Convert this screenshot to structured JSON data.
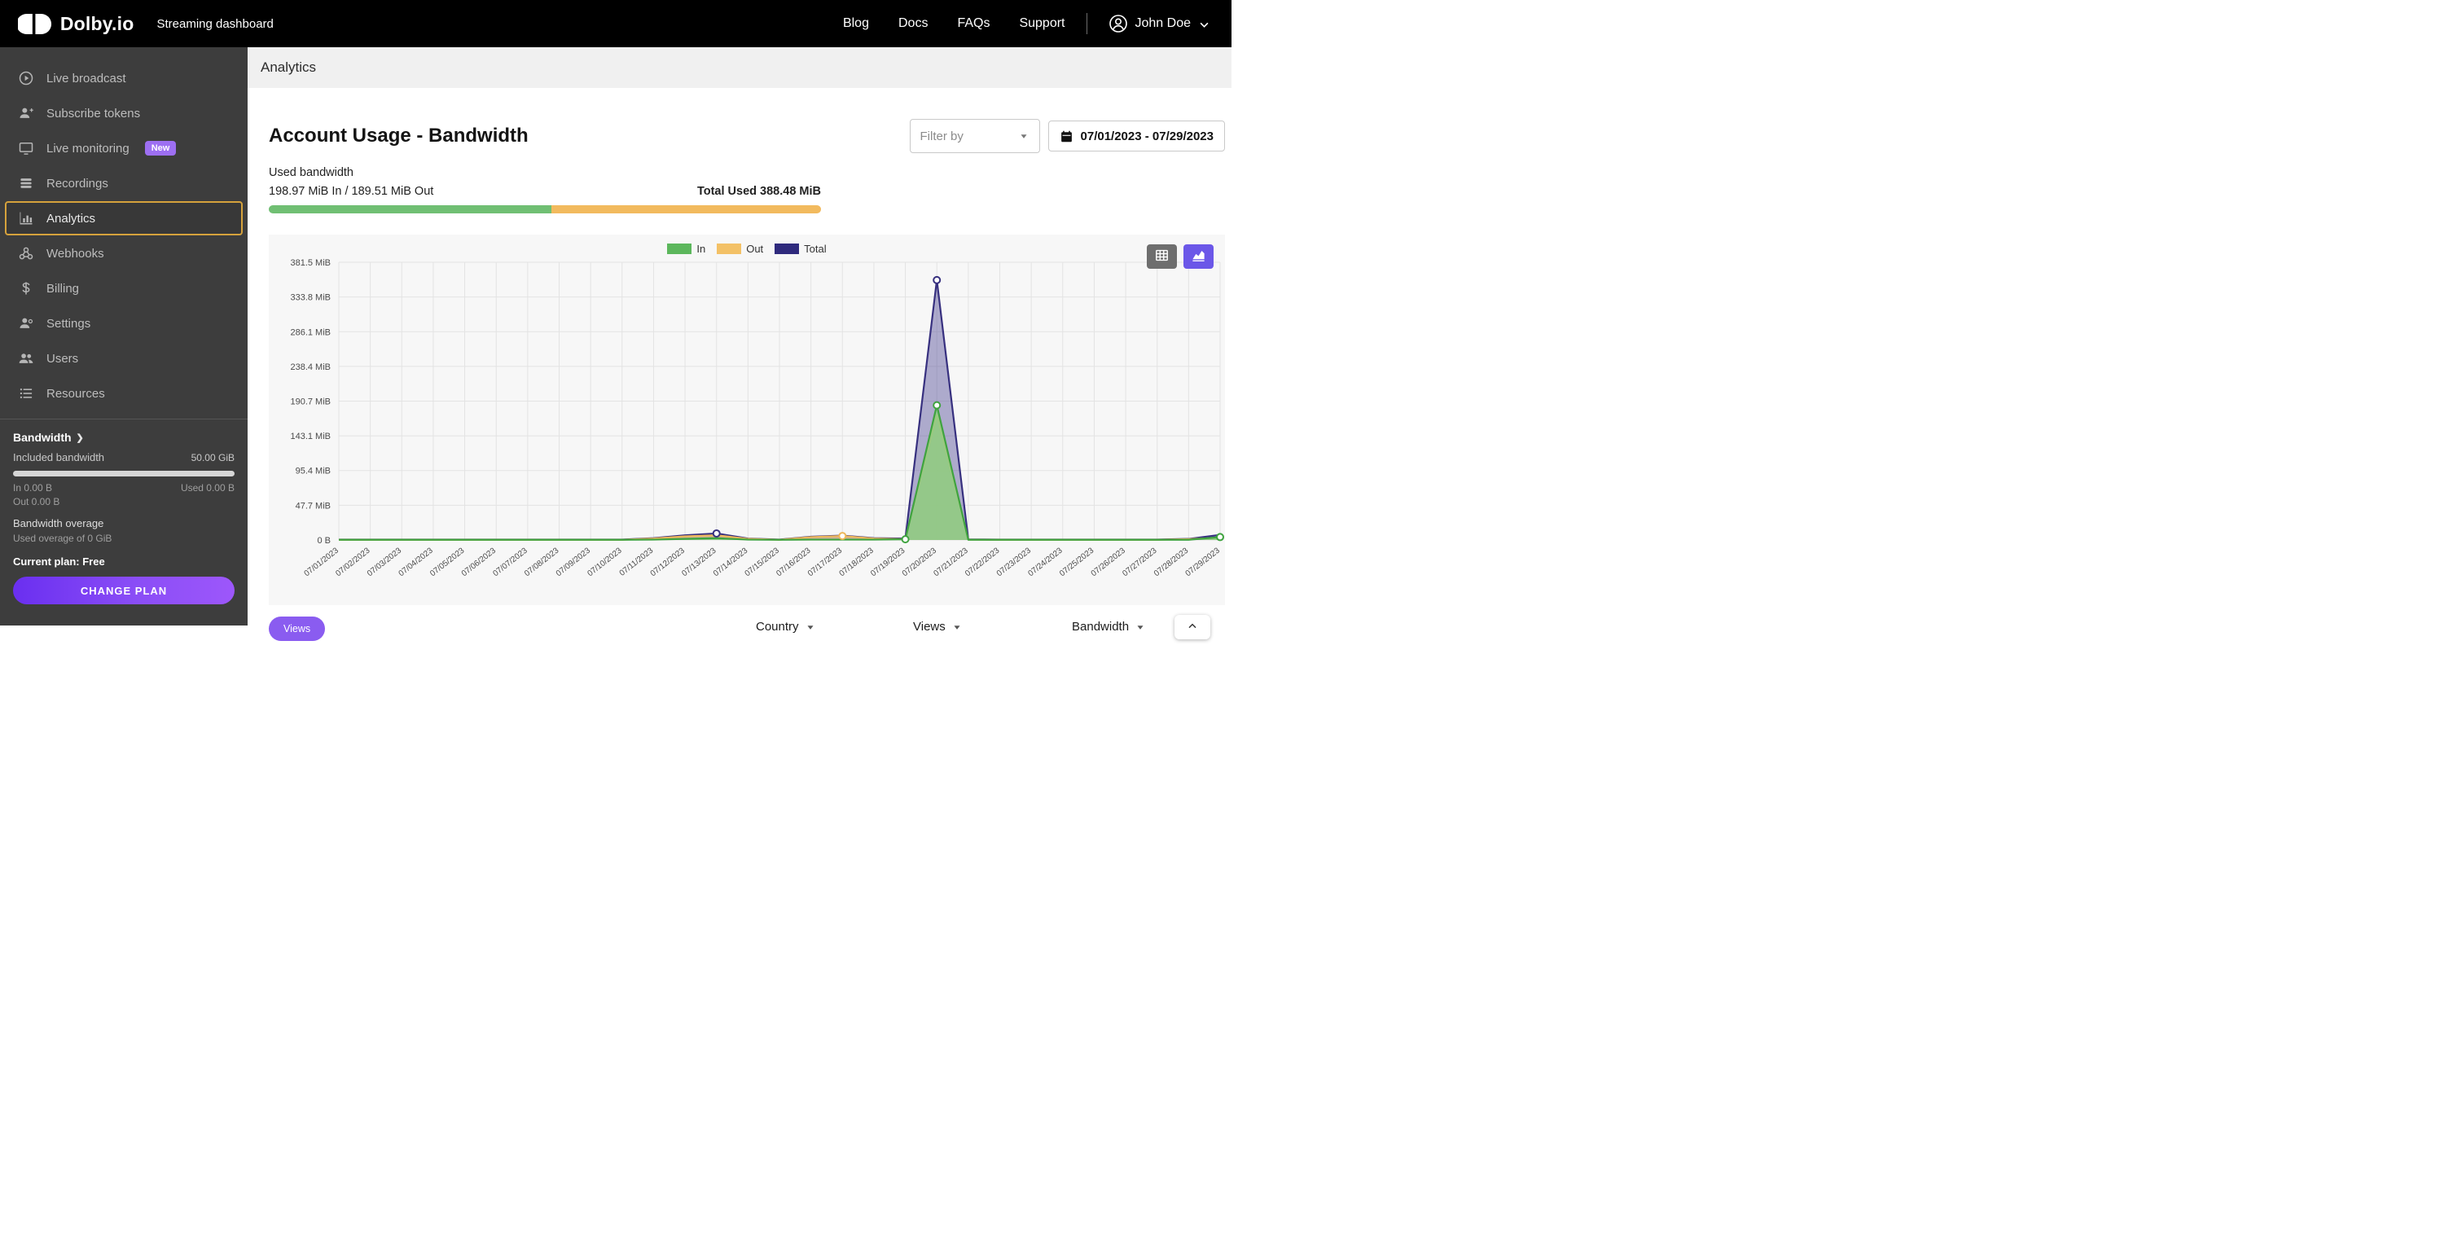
{
  "header": {
    "brand": "Dolby.io",
    "app_subtitle": "Streaming dashboard",
    "nav_items": [
      "Blog",
      "Docs",
      "FAQs",
      "Support"
    ],
    "user_name": "John Doe"
  },
  "sidebar": {
    "items": [
      {
        "label": "Live broadcast",
        "icon": "broadcast-icon",
        "active": false
      },
      {
        "label": "Subscribe tokens",
        "icon": "subscribe-tokens-icon",
        "active": false
      },
      {
        "label": "Live monitoring",
        "icon": "live-monitoring-icon",
        "active": false,
        "badge": "New"
      },
      {
        "label": "Recordings",
        "icon": "recordings-icon",
        "active": false
      },
      {
        "label": "Analytics",
        "icon": "analytics-icon",
        "active": true
      },
      {
        "label": "Webhooks",
        "icon": "webhooks-icon",
        "active": false
      },
      {
        "label": "Billing",
        "icon": "billing-icon",
        "active": false
      },
      {
        "label": "Settings",
        "icon": "settings-icon",
        "active": false
      },
      {
        "label": "Users",
        "icon": "users-icon",
        "active": false
      },
      {
        "label": "Resources",
        "icon": "resources-icon",
        "active": false
      }
    ],
    "plan": {
      "section_title": "Bandwidth",
      "included_label": "Included bandwidth",
      "included_value": "50.00 GiB",
      "in_value": "In 0.00 B",
      "used_value": "Used 0.00 B",
      "out_value": "Out 0.00 B",
      "overage_title": "Bandwidth overage",
      "overage_detail": "Used overage of 0 GiB",
      "current_plan": "Current plan: Free",
      "change_plan_label": "CHANGE PLAN"
    }
  },
  "main": {
    "page_title": "Analytics",
    "section_title": "Account Usage - Bandwidth",
    "filter_placeholder": "Filter by",
    "date_range": "07/01/2023 - 07/29/2023",
    "usage": {
      "label": "Used bandwidth",
      "in_out": "198.97 MiB In / 189.51 MiB Out",
      "total": "Total Used 388.48 MiB",
      "in_percent": 51.2,
      "in_color": "#70bf73",
      "out_color": "#f2ba5e"
    },
    "footer": {
      "views_button": "Views",
      "columns": [
        "Country",
        "Views",
        "Bandwidth"
      ]
    }
  },
  "chart_data": {
    "type": "area",
    "title": "Account Usage - Bandwidth (daily, MiB)",
    "x": [
      "07/01/2023",
      "07/02/2023",
      "07/03/2023",
      "07/04/2023",
      "07/05/2023",
      "07/06/2023",
      "07/07/2023",
      "07/08/2023",
      "07/09/2023",
      "07/10/2023",
      "07/11/2023",
      "07/12/2023",
      "07/13/2023",
      "07/14/2023",
      "07/15/2023",
      "07/16/2023",
      "07/17/2023",
      "07/18/2023",
      "07/19/2023",
      "07/20/2023",
      "07/21/2023",
      "07/22/2023",
      "07/23/2023",
      "07/24/2023",
      "07/25/2023",
      "07/26/2023",
      "07/27/2023",
      "07/28/2023",
      "07/29/2023"
    ],
    "ylim": [
      0,
      381.5
    ],
    "yticks": [
      {
        "value": 0,
        "label": "0 B"
      },
      {
        "value": 47.7,
        "label": "47.7 MiB"
      },
      {
        "value": 95.4,
        "label": "95.4 MiB"
      },
      {
        "value": 143.1,
        "label": "143.1 MiB"
      },
      {
        "value": 190.7,
        "label": "190.7 MiB"
      },
      {
        "value": 238.4,
        "label": "238.4 MiB"
      },
      {
        "value": 286.1,
        "label": "286.1 MiB"
      },
      {
        "value": 333.8,
        "label": "333.8 MiB"
      },
      {
        "value": 381.5,
        "label": "381.5 MiB"
      }
    ],
    "grid": true,
    "legend_position": "top-center",
    "series": [
      {
        "name": "In",
        "color": "#3fa33f",
        "swatch": "#5cb75c",
        "fill": "rgba(139,205,134,0.85)",
        "values": [
          0.3,
          0.3,
          0.3,
          0.3,
          0.3,
          0.3,
          0.3,
          0.3,
          0.3,
          0.3,
          0.5,
          1.5,
          2.5,
          0.5,
          0.3,
          0.5,
          0.5,
          0.5,
          1,
          185,
          0.3,
          0.3,
          0.3,
          0.3,
          0.3,
          0.3,
          0.3,
          0.3,
          4
        ],
        "markers": [
          18,
          19,
          28
        ]
      },
      {
        "name": "Out",
        "color": "#eeb75a",
        "swatch": "#f3c166",
        "fill": "rgba(239,185,91,0.45)",
        "values": [
          0.3,
          0.3,
          0.3,
          0.3,
          0.3,
          0.3,
          0.3,
          0.3,
          0.3,
          0.3,
          2,
          5,
          6.5,
          1.5,
          0.3,
          4,
          5.5,
          2,
          1,
          172,
          0.5,
          0.3,
          0.3,
          0.3,
          0.3,
          0.3,
          0.3,
          1.2,
          3
        ],
        "markers": [
          16
        ]
      },
      {
        "name": "Total",
        "color": "#37307f",
        "swatch": "#2f2a7d",
        "fill": "rgba(62,54,141,0.40)",
        "values": [
          0.6,
          0.6,
          0.6,
          0.6,
          0.6,
          0.6,
          0.6,
          0.6,
          0.6,
          0.6,
          2.5,
          6.5,
          9,
          2,
          0.6,
          4.5,
          6,
          2.5,
          2,
          357,
          0.8,
          0.6,
          0.6,
          0.6,
          0.6,
          0.6,
          0.6,
          1.5,
          7
        ],
        "markers": [
          12,
          19
        ]
      }
    ]
  }
}
